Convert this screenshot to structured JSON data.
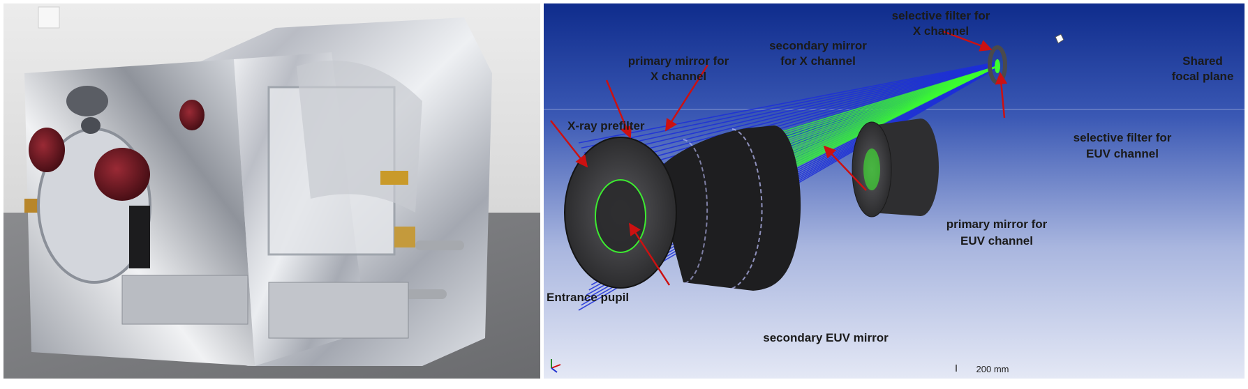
{
  "diagram": {
    "labels": {
      "selective_filter_x_line1": "selective filter for",
      "selective_filter_x_line2": "X channel",
      "shared_focal_line1": "Shared",
      "shared_focal_line2": "focal plane",
      "secondary_x_line1": "secondary mirror",
      "secondary_x_line2": "for X channel",
      "primary_x_line1": "primary mirror for",
      "primary_x_line2": "X channel",
      "xray_prefilter": "X-ray prefilter",
      "selective_filter_euv_line1": "selective filter for",
      "selective_filter_euv_line2": "EUV channel",
      "primary_euv_line1": "primary mirror for",
      "primary_euv_line2": "EUV channel",
      "entrance_pupil": "Entrance pupil",
      "secondary_euv": "secondary EUV mirror"
    },
    "scale_bar": "200 mm",
    "colors": {
      "background_top": "#0f2c8c",
      "background_bottom": "#dde3f3",
      "xray_rays": "#1d2fd8",
      "euv_rays": "#3cff2e",
      "mirror_body": "#3a3a3c",
      "arrow": "#cc1111"
    }
  },
  "photo": {
    "subject": "flight-model instrument in MLI blanket",
    "colors": {
      "blanket": "#c9ccd2",
      "cover": "#6b1a22",
      "wall": "#e9e9e9",
      "floor": "#7a7b7e"
    }
  }
}
